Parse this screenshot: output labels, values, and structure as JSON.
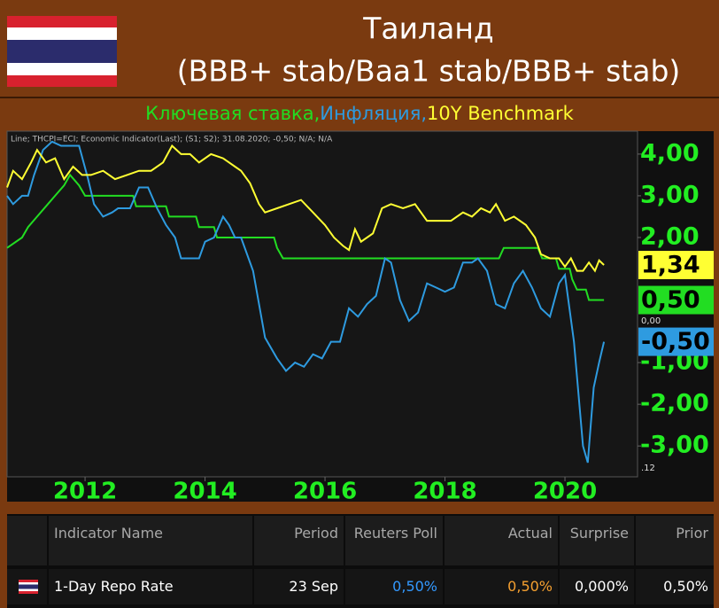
{
  "header": {
    "title": "Таиланд",
    "subtitle": "(BBB+ stab/Baa1 stab/BBB+ stab)"
  },
  "chart_data": {
    "type": "line",
    "info_line": "Line; THCPI=ECI; Economic Indicator(Last); (S1; S2); 31.08.2020; -0,50; N/A; N/A",
    "zero_label": "0,00",
    "corner_label": ".12",
    "xlim": [
      2010.7,
      2021.21
    ],
    "xticks": [
      2012,
      2014,
      2016,
      2018,
      2020
    ],
    "ylim": [
      -3.74,
      4.55
    ],
    "yticks": [
      {
        "value": 4,
        "label": "4,00"
      },
      {
        "value": 3,
        "label": "3,00"
      },
      {
        "value": 2,
        "label": "2,00"
      },
      {
        "value": -1,
        "label": "-1,00"
      },
      {
        "value": -2,
        "label": "-2,00"
      },
      {
        "value": -3,
        "label": "-3,00"
      }
    ],
    "grid": false,
    "series": [
      {
        "name": "Ключевая ставка,",
        "color": "#22dd22",
        "last_label": "0,50",
        "x": [
          2010.7,
          2010.95,
          2011.05,
          2011.2,
          2011.35,
          2011.5,
          2011.65,
          2011.75,
          2011.9,
          2012.0,
          2012.8,
          2012.85,
          2013.35,
          2013.4,
          2013.85,
          2013.9,
          2014.15,
          2014.2,
          2015.15,
          2015.2,
          2015.3,
          2018.9,
          2018.98,
          2019.55,
          2019.62,
          2019.85,
          2019.9,
          2020.08,
          2020.12,
          2020.2,
          2020.35,
          2020.4,
          2020.65
        ],
        "values": [
          1.75,
          2.0,
          2.25,
          2.5,
          2.75,
          3.0,
          3.25,
          3.5,
          3.25,
          3.0,
          3.0,
          2.75,
          2.75,
          2.5,
          2.5,
          2.25,
          2.25,
          2.0,
          2.0,
          1.75,
          1.5,
          1.5,
          1.75,
          1.75,
          1.5,
          1.5,
          1.25,
          1.25,
          1.0,
          0.75,
          0.75,
          0.5,
          0.5
        ]
      },
      {
        "name": "Инфляция,",
        "color": "#2e9be0",
        "last_label": "-0,50",
        "x": [
          2010.7,
          2010.8,
          2010.95,
          2011.05,
          2011.15,
          2011.3,
          2011.45,
          2011.6,
          2011.75,
          2011.9,
          2012.05,
          2012.15,
          2012.3,
          2012.45,
          2012.55,
          2012.75,
          2012.9,
          2013.05,
          2013.2,
          2013.35,
          2013.5,
          2013.6,
          2013.75,
          2013.9,
          2014.0,
          2014.15,
          2014.3,
          2014.4,
          2014.5,
          2014.6,
          2014.8,
          2015.0,
          2015.2,
          2015.35,
          2015.5,
          2015.65,
          2015.8,
          2015.95,
          2016.1,
          2016.25,
          2016.4,
          2016.55,
          2016.7,
          2016.85,
          2017.0,
          2017.1,
          2017.25,
          2017.4,
          2017.55,
          2017.7,
          2017.85,
          2018.0,
          2018.15,
          2018.3,
          2018.45,
          2018.55,
          2018.7,
          2018.85,
          2019.0,
          2019.15,
          2019.3,
          2019.45,
          2019.6,
          2019.75,
          2019.9,
          2020.0,
          2020.15,
          2020.3,
          2020.38,
          2020.48,
          2020.57,
          2020.65
        ],
        "values": [
          3.0,
          2.8,
          3.0,
          3.0,
          3.5,
          4.1,
          4.3,
          4.2,
          4.2,
          4.2,
          3.4,
          2.8,
          2.5,
          2.6,
          2.7,
          2.7,
          3.2,
          3.2,
          2.7,
          2.3,
          2.0,
          1.5,
          1.5,
          1.5,
          1.9,
          2.0,
          2.5,
          2.3,
          2.0,
          2.0,
          1.2,
          -0.4,
          -0.9,
          -1.2,
          -1.0,
          -1.1,
          -0.8,
          -0.9,
          -0.5,
          -0.5,
          0.3,
          0.1,
          0.4,
          0.6,
          1.5,
          1.4,
          0.5,
          0.0,
          0.2,
          0.9,
          0.8,
          0.7,
          0.8,
          1.4,
          1.4,
          1.5,
          1.2,
          0.4,
          0.3,
          0.9,
          1.2,
          0.8,
          0.3,
          0.1,
          0.9,
          1.1,
          -0.5,
          -3.0,
          -3.4,
          -1.6,
          -1.0,
          -0.5
        ]
      },
      {
        "name": "10Y Benchmark",
        "color": "#ffff33",
        "last_label": "1,34",
        "x": [
          2010.7,
          2010.8,
          2010.95,
          2011.1,
          2011.2,
          2011.35,
          2011.5,
          2011.65,
          2011.8,
          2011.95,
          2012.1,
          2012.3,
          2012.5,
          2012.7,
          2012.9,
          2013.1,
          2013.3,
          2013.45,
          2013.6,
          2013.75,
          2013.9,
          2014.1,
          2014.3,
          2014.5,
          2014.6,
          2014.75,
          2014.9,
          2015.0,
          2015.2,
          2015.4,
          2015.6,
          2015.8,
          2016.0,
          2016.15,
          2016.3,
          2016.4,
          2016.5,
          2016.6,
          2016.8,
          2016.95,
          2017.1,
          2017.3,
          2017.5,
          2017.7,
          2017.9,
          2018.1,
          2018.3,
          2018.45,
          2018.6,
          2018.75,
          2018.85,
          2019.0,
          2019.15,
          2019.35,
          2019.5,
          2019.6,
          2019.75,
          2019.9,
          2020.0,
          2020.1,
          2020.2,
          2020.3,
          2020.4,
          2020.5,
          2020.57,
          2020.65
        ],
        "values": [
          3.2,
          3.6,
          3.4,
          3.8,
          4.1,
          3.8,
          3.9,
          3.4,
          3.7,
          3.5,
          3.5,
          3.6,
          3.4,
          3.5,
          3.6,
          3.6,
          3.8,
          4.2,
          4.0,
          4.0,
          3.8,
          4.0,
          3.9,
          3.7,
          3.6,
          3.3,
          2.8,
          2.6,
          2.7,
          2.8,
          2.9,
          2.6,
          2.3,
          2.0,
          1.8,
          1.7,
          2.2,
          1.9,
          2.1,
          2.7,
          2.8,
          2.7,
          2.8,
          2.4,
          2.4,
          2.4,
          2.6,
          2.5,
          2.7,
          2.6,
          2.8,
          2.4,
          2.5,
          2.3,
          2.0,
          1.6,
          1.5,
          1.5,
          1.3,
          1.5,
          1.2,
          1.2,
          1.4,
          1.2,
          1.45,
          1.34
        ]
      }
    ]
  },
  "table": {
    "headers": [
      "Indicator Name",
      "Period",
      "Reuters Poll",
      "Actual",
      "Surprise",
      "Prior"
    ],
    "rows": [
      [
        "1-Day Repo Rate",
        "23 Sep",
        "0,50%",
        "0,50%",
        "0,000%",
        "0,50%"
      ]
    ]
  }
}
